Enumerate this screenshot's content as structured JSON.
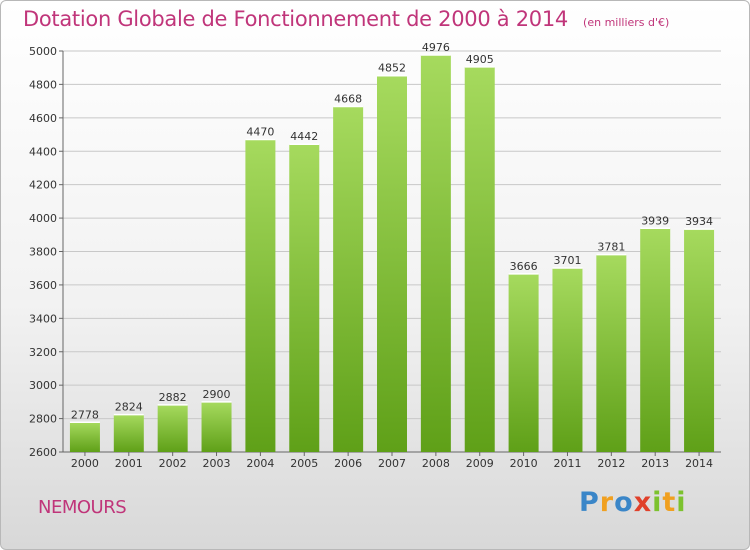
{
  "chart_data": {
    "type": "bar",
    "title": "Dotation Globale de Fonctionnement de 2000 à 2014",
    "subtitle": "(en milliers d'€)",
    "categories": [
      "2000",
      "2001",
      "2002",
      "2003",
      "2004",
      "2005",
      "2006",
      "2007",
      "2008",
      "2009",
      "2010",
      "2011",
      "2012",
      "2013",
      "2014"
    ],
    "values": [
      2778,
      2824,
      2882,
      2900,
      4470,
      4442,
      4668,
      4852,
      4976,
      4905,
      3666,
      3701,
      3781,
      3939,
      3934
    ],
    "yticks": [
      2600,
      2800,
      3000,
      3200,
      3400,
      3600,
      3800,
      4000,
      4200,
      4400,
      4600,
      4800,
      5000
    ],
    "ylim": [
      2600,
      5000
    ],
    "xlabel": "",
    "ylabel": "",
    "grid": true,
    "bar_color": "#7cc22e",
    "bar_color_light": "#a2d85a"
  },
  "footer": {
    "place": "NEMOURS",
    "brand_letters": [
      {
        "ch": "P",
        "color": "#3a86c8"
      },
      {
        "ch": "r",
        "color": "#f0a020"
      },
      {
        "ch": "o",
        "color": "#3a86c8"
      },
      {
        "ch": "x",
        "color": "#e0402a"
      },
      {
        "ch": "i",
        "color": "#7cc22e"
      },
      {
        "ch": "t",
        "color": "#f0a020"
      },
      {
        "ch": "i",
        "color": "#7cc22e"
      }
    ]
  },
  "colors": {
    "title": "#c0357a"
  }
}
